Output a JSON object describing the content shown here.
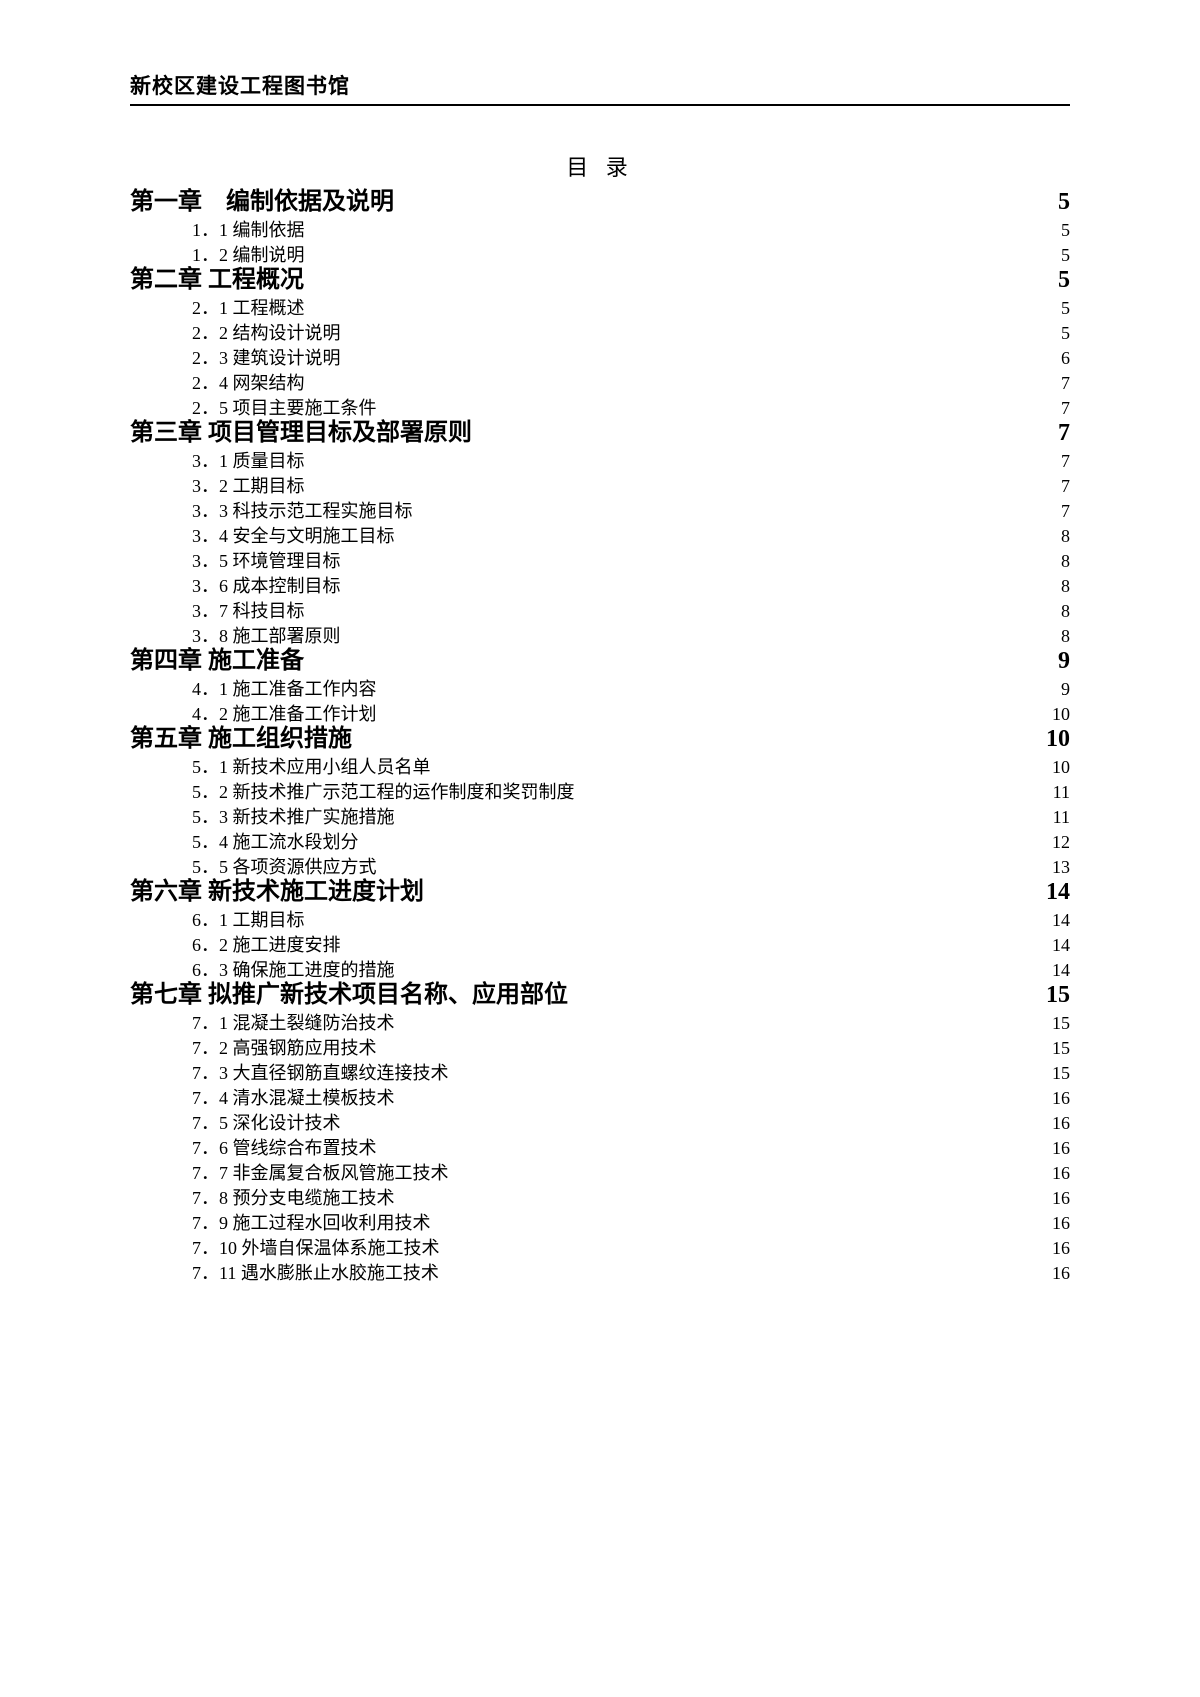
{
  "header": "新校区建设工程图书馆",
  "toc_title": "目  录",
  "chapters": [
    {
      "label": "第一章　编制依据及说明",
      "page": "5",
      "subs": [
        {
          "label": "1．1 编制依据",
          "page": "5"
        },
        {
          "label": "1．2 编制说明",
          "page": "5"
        }
      ]
    },
    {
      "label": "第二章 工程概况",
      "page": "5",
      "subs": [
        {
          "label": "2．1 工程概述",
          "page": "5"
        },
        {
          "label": "2．2 结构设计说明",
          "page": "5"
        },
        {
          "label": "2．3 建筑设计说明",
          "page": "6"
        },
        {
          "label": "2．4 网架结构",
          "page": "7"
        },
        {
          "label": "2．5 项目主要施工条件",
          "page": "7"
        }
      ]
    },
    {
      "label": "第三章 项目管理目标及部署原则",
      "page": "7",
      "subs": [
        {
          "label": "3．1 质量目标",
          "page": "7"
        },
        {
          "label": "3．2 工期目标",
          "page": "7"
        },
        {
          "label": "3．3 科技示范工程实施目标",
          "page": "7"
        },
        {
          "label": "3．4 安全与文明施工目标",
          "page": "8"
        },
        {
          "label": "3．5 环境管理目标",
          "page": "8"
        },
        {
          "label": "3．6 成本控制目标",
          "page": "8"
        },
        {
          "label": "3．7 科技目标",
          "page": "8"
        },
        {
          "label": "3．8 施工部署原则",
          "page": "8"
        }
      ]
    },
    {
      "label": "第四章 施工准备",
      "page": "9",
      "subs": [
        {
          "label": "4．1 施工准备工作内容",
          "page": "9"
        },
        {
          "label": "4．2 施工准备工作计划",
          "page": "10"
        }
      ]
    },
    {
      "label": "第五章 施工组织措施",
      "page": "10",
      "subs": [
        {
          "label": "5．1 新技术应用小组人员名单",
          "page": "10"
        },
        {
          "label": "5．2 新技术推广示范工程的运作制度和奖罚制度",
          "page": "11"
        },
        {
          "label": "5．3 新技术推广实施措施",
          "page": "11"
        },
        {
          "label": "5．4 施工流水段划分",
          "page": "12"
        },
        {
          "label": "5．5 各项资源供应方式",
          "page": "13"
        }
      ]
    },
    {
      "label": "第六章 新技术施工进度计划",
      "page": "14",
      "subs": [
        {
          "label": "6．1 工期目标",
          "page": "14"
        },
        {
          "label": "6．2 施工进度安排",
          "page": "14"
        },
        {
          "label": "6．3 确保施工进度的措施",
          "page": "14"
        }
      ]
    },
    {
      "label": "第七章 拟推广新技术项目名称、应用部位",
      "page": "15",
      "subs": [
        {
          "label": "7．1 混凝土裂缝防治技术",
          "page": "15"
        },
        {
          "label": "7．2 高强钢筋应用技术",
          "page": "15"
        },
        {
          "label": "7．3 大直径钢筋直螺纹连接技术",
          "page": "15"
        },
        {
          "label": "7．4 清水混凝土模板技术",
          "page": "16"
        },
        {
          "label": "7．5 深化设计技术",
          "page": "16"
        },
        {
          "label": "7．6 管线综合布置技术",
          "page": "16"
        },
        {
          "label": "7．7 非金属复合板风管施工技术",
          "page": "16"
        },
        {
          "label": "7．8 预分支电缆施工技术",
          "page": "16"
        },
        {
          "label": "7．9 施工过程水回收利用技术",
          "page": "16"
        },
        {
          "label": "7．10 外墙自保温体系施工技术",
          "page": "16"
        },
        {
          "label": "7．11 遇水膨胀止水胶施工技术",
          "page": "16"
        }
      ]
    }
  ]
}
